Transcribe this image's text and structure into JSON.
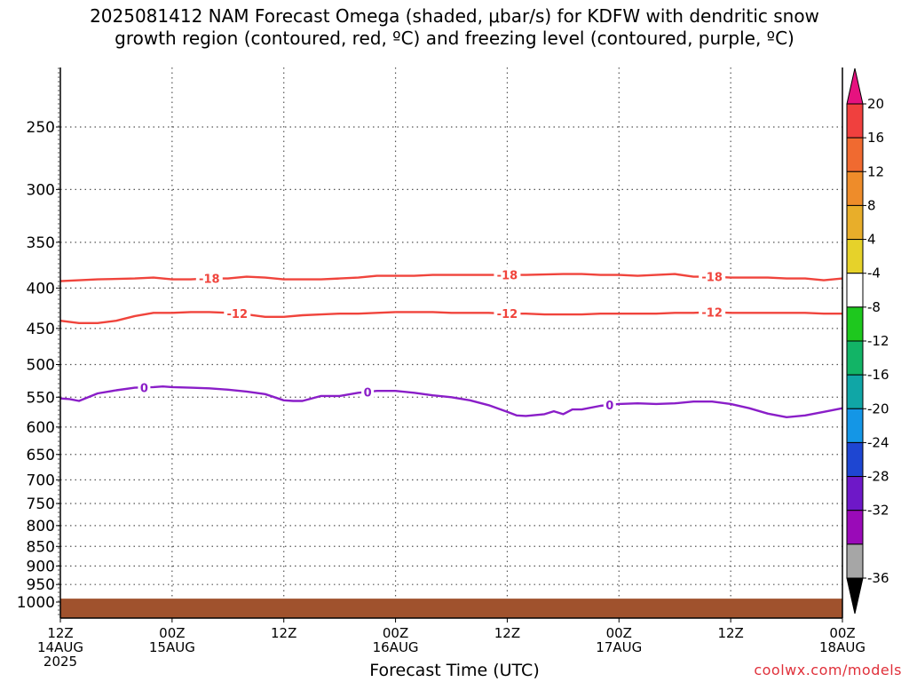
{
  "title": {
    "line1": "2025081412 NAM Forecast Omega (shaded, μbar/s) for KDFW with dendritic snow",
    "line2": "growth region (contoured, red, ºC) and freezing level (contoured, purple, ºC)"
  },
  "credit": "coolwx.com/models",
  "chart_data": {
    "type": "line",
    "xlabel": "Forecast Time (UTC)",
    "ylabel": "",
    "x_range_hours": [
      0,
      84
    ],
    "y_scale": "log-pressure",
    "y_range_hpa": [
      200,
      1050
    ],
    "grid": true,
    "y_ticks": [
      250,
      300,
      350,
      400,
      450,
      500,
      550,
      600,
      650,
      700,
      750,
      800,
      850,
      900,
      950,
      1000
    ],
    "x_ticks": [
      {
        "hour": 0,
        "lines": [
          "12Z",
          "14AUG",
          "2025"
        ]
      },
      {
        "hour": 12,
        "lines": [
          "00Z",
          "15AUG"
        ]
      },
      {
        "hour": 24,
        "lines": [
          "12Z"
        ]
      },
      {
        "hour": 36,
        "lines": [
          "00Z",
          "16AUG"
        ]
      },
      {
        "hour": 48,
        "lines": [
          "12Z"
        ]
      },
      {
        "hour": 60,
        "lines": [
          "00Z",
          "17AUG"
        ]
      },
      {
        "hour": 72,
        "lines": [
          "12Z"
        ]
      },
      {
        "hour": 84,
        "lines": [
          "00Z",
          "18AUG"
        ]
      }
    ],
    "series": [
      {
        "label": "-18",
        "color": "#f0443c",
        "x": [
          0,
          4,
          8,
          10,
          12,
          14,
          16,
          18,
          20,
          22,
          24,
          26,
          28,
          30,
          32,
          34,
          36,
          38,
          40,
          44,
          48,
          50,
          54,
          56,
          58,
          60,
          62,
          64,
          66,
          68,
          70,
          72,
          74,
          76,
          78,
          80,
          82,
          84
        ],
        "y": [
          392,
          390,
          389,
          388,
          390,
          390,
          389,
          389,
          387,
          388,
          390,
          390,
          390,
          389,
          388,
          386,
          386,
          386,
          385,
          385,
          385,
          385,
          384,
          384,
          385,
          385,
          386,
          385,
          384,
          387,
          387,
          388,
          388,
          388,
          389,
          389,
          391,
          389
        ]
      },
      {
        "label": "-12",
        "color": "#f0443c",
        "x": [
          0,
          2,
          4,
          6,
          8,
          10,
          12,
          14,
          16,
          18,
          20,
          22,
          24,
          26,
          28,
          30,
          32,
          34,
          36,
          38,
          40,
          42,
          44,
          46,
          48,
          50,
          52,
          54,
          56,
          58,
          60,
          62,
          64,
          66,
          68,
          70,
          72,
          74,
          76,
          78,
          80,
          82,
          84
        ],
        "y": [
          440,
          443,
          443,
          440,
          434,
          430,
          430,
          429,
          429,
          430,
          432,
          435,
          435,
          433,
          432,
          431,
          431,
          430,
          429,
          429,
          429,
          430,
          430,
          430,
          431,
          431,
          432,
          432,
          432,
          431,
          431,
          431,
          431,
          430,
          430,
          429,
          430,
          430,
          430,
          430,
          430,
          431,
          431
        ]
      },
      {
        "label": "0",
        "color": "#8a1ec8",
        "x": [
          0,
          1,
          2,
          3,
          4,
          6,
          8,
          10,
          11,
          12,
          14,
          16,
          18,
          20,
          22,
          24,
          25,
          26,
          28,
          30,
          32,
          34,
          36,
          38,
          40,
          42,
          44,
          46,
          48,
          49,
          50,
          52,
          53,
          54,
          55,
          56,
          58,
          60,
          62,
          64,
          66,
          68,
          70,
          72,
          74,
          76,
          78,
          80,
          82,
          84
        ],
        "y": [
          552,
          553,
          556,
          550,
          544,
          539,
          535,
          534,
          533,
          534,
          535,
          536,
          538,
          541,
          545,
          555,
          556,
          556,
          548,
          548,
          543,
          540,
          540,
          543,
          547,
          550,
          555,
          563,
          574,
          580,
          581,
          578,
          573,
          578,
          570,
          570,
          564,
          561,
          560,
          561,
          560,
          557,
          557,
          561,
          568,
          577,
          583,
          580,
          574,
          568
        ]
      }
    ],
    "terrain": {
      "color": "#a0522d",
      "surface_hpa": 990
    },
    "colorbar": {
      "labels": [
        "20",
        "16",
        "12",
        "8",
        "4",
        "-4",
        "-8",
        "-12",
        "-16",
        "-20",
        "-24",
        "-28",
        "-32",
        "-36"
      ],
      "top_arrow_color": "#e6127f",
      "bottom_arrow_color": "#000000",
      "colors": [
        "#f0403e",
        "#f06a30",
        "#ee8c2a",
        "#e8ae2a",
        "#e6d22a",
        "#ffffff",
        "#1ec81e",
        "#12b466",
        "#10a6a6",
        "#1496e6",
        "#1e46d2",
        "#6e18c8",
        "#9a0ab8",
        "#a6a6a6"
      ]
    }
  }
}
